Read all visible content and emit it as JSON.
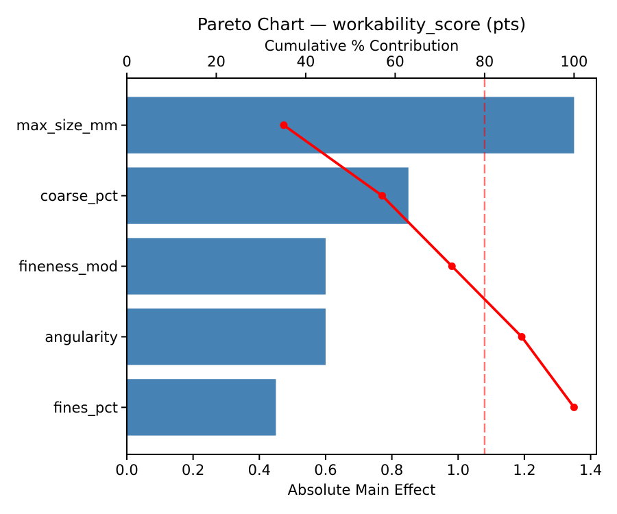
{
  "chart_data": {
    "type": "bar",
    "subtype": "pareto",
    "orientation": "horizontal",
    "title": "Pareto Chart — workability_score (pts)",
    "top_axis_label": "Cumulative % Contribution",
    "bottom_axis_label": "Absolute Main Effect",
    "categories": [
      "max_size_mm",
      "coarse_pct",
      "fineness_mod",
      "angularity",
      "fines_pct"
    ],
    "series": [
      {
        "name": "absolute_main_effect",
        "type": "bar",
        "axis": "bottom",
        "values": [
          1.35,
          0.85,
          0.6,
          0.6,
          0.45
        ]
      },
      {
        "name": "cumulative_pct_contribution",
        "type": "line",
        "axis": "top",
        "values": [
          35.1,
          57.1,
          72.7,
          88.3,
          100.0
        ]
      }
    ],
    "bottom_axis": {
      "range": [
        0,
        1.4175
      ],
      "ticks": [
        0,
        0.2,
        0.4,
        0.6,
        0.8,
        1.0,
        1.2,
        1.4
      ],
      "tick_labels": [
        "0.0",
        "0.2",
        "0.4",
        "0.6",
        "0.8",
        "1.0",
        "1.2",
        "1.4"
      ]
    },
    "top_axis": {
      "range": [
        0,
        105
      ],
      "ticks": [
        0,
        20,
        40,
        60,
        80,
        100
      ],
      "tick_labels": [
        "0",
        "20",
        "40",
        "60",
        "80",
        "100"
      ]
    },
    "threshold_line": {
      "axis": "top",
      "value": 80,
      "style": "dashed"
    },
    "grid": false,
    "legend": "none",
    "colors": {
      "bar": "#4682B4",
      "line": "#FF0000",
      "threshold": "rgba(255,0,0,0.55)",
      "marker": "#FF0000",
      "text": "#000000",
      "spine": "#000000",
      "background": "#FFFFFF"
    }
  }
}
